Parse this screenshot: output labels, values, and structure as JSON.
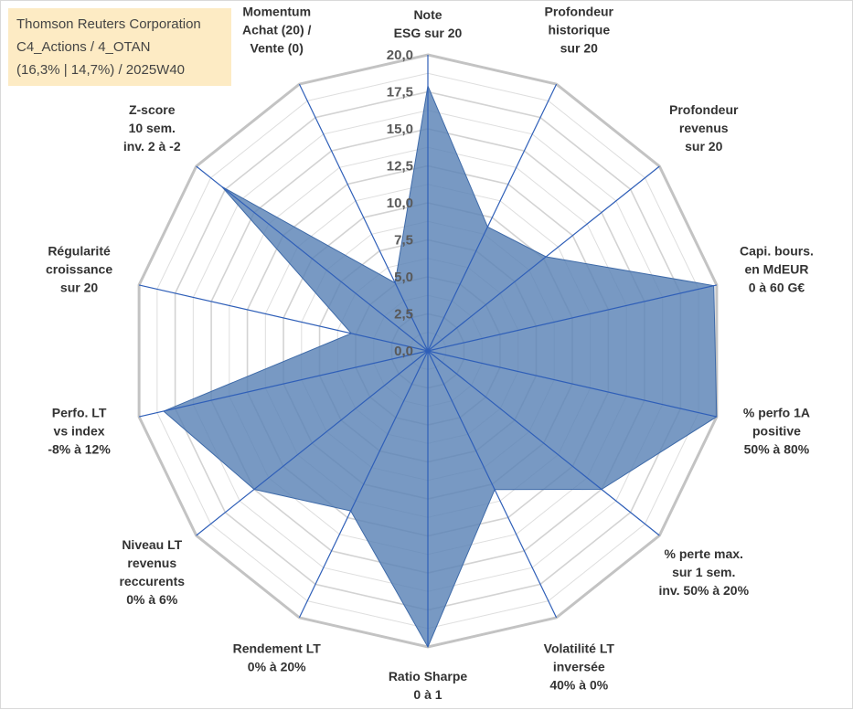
{
  "header": {
    "company": "Thomson Reuters Corporation",
    "path": "C4_Actions / 4_OTAN",
    "meta": "(16,3% | 14,7%) / 2025W40"
  },
  "chart_data": {
    "type": "radar",
    "title": "",
    "rmin": 0,
    "rmax": 20,
    "tick_labels": [
      "0,0",
      "2,5",
      "5,0",
      "7,5",
      "10,0",
      "12,5",
      "15,0",
      "17,5",
      "20,0"
    ],
    "axes": [
      [
        "Note",
        "ESG sur 20"
      ],
      [
        "Profondeur",
        "historique",
        "sur 20"
      ],
      [
        "Profondeur",
        "revenus",
        "sur 20"
      ],
      [
        "Capi. bours.",
        "en MdEUR",
        "0 à 60 G€"
      ],
      [
        "% perfo 1A",
        "positive",
        "50% à 80%"
      ],
      [
        "% perte max.",
        "sur 1 sem.",
        "inv. 50% à 20%"
      ],
      [
        "Volatilité LT",
        "inversée",
        "40% à 0%"
      ],
      [
        "Ratio Sharpe",
        "0 à 1"
      ],
      [
        "Rendement LT",
        "0% à 20%"
      ],
      [
        "Niveau LT",
        "revenus",
        "reccurents",
        "0% à 6%"
      ],
      [
        "Perfo. LT",
        "vs index",
        "-8% à 12%"
      ],
      [
        "Régularité",
        "croissance",
        "sur 20"
      ],
      [
        "Z-score",
        "10 sem.",
        "inv. 2 à -2"
      ],
      [
        "Momentum",
        "Achat (20) /",
        "Vente (0)"
      ]
    ],
    "values": [
      17.9,
      9.3,
      10.2,
      19.8,
      20.0,
      15.0,
      10.4,
      20.0,
      12.0,
      15.0,
      18.3,
      5.3,
      17.8,
      5.1
    ],
    "colors": {
      "fill": "#5a82b6",
      "stroke": "#3e6aa8",
      "spokes": "#2f5fb8",
      "grid": "#c3c3c3",
      "inner_grid": "#dedede"
    }
  }
}
